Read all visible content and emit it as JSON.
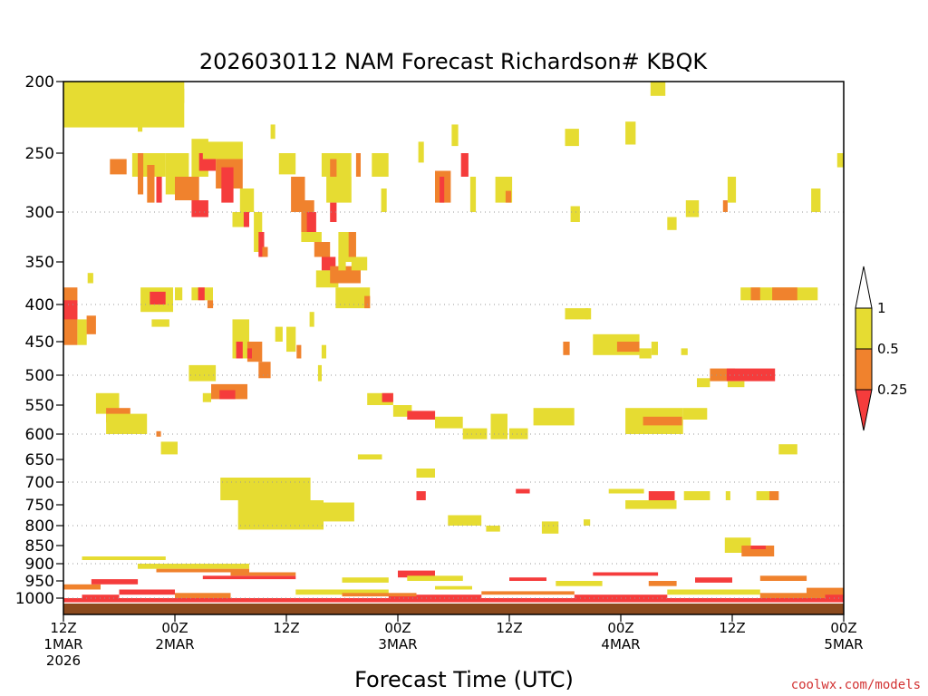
{
  "chart_data": {
    "type": "heatmap",
    "title": "2026030112 NAM Forecast Richardson# KBQK",
    "xlabel": "Forecast Time (UTC)",
    "credit": "coolwx.com/models",
    "y_axis": {
      "range": [
        1025,
        200
      ],
      "ticks": [
        200,
        250,
        300,
        350,
        400,
        450,
        500,
        550,
        600,
        650,
        700,
        750,
        800,
        850,
        900,
        950,
        1000
      ],
      "dotted_grid": [
        300,
        400,
        500,
        600,
        700,
        800,
        900,
        1000
      ]
    },
    "x_axis": {
      "range_hours": [
        0,
        84
      ],
      "ticks": [
        {
          "hour": 0,
          "lines": [
            "12Z",
            "1MAR",
            "2026"
          ]
        },
        {
          "hour": 12,
          "lines": [
            "00Z",
            "2MAR"
          ]
        },
        {
          "hour": 24,
          "lines": [
            "12Z"
          ]
        },
        {
          "hour": 36,
          "lines": [
            "00Z",
            "3MAR"
          ]
        },
        {
          "hour": 48,
          "lines": [
            "12Z"
          ]
        },
        {
          "hour": 60,
          "lines": [
            "00Z",
            "4MAR"
          ]
        },
        {
          "hour": 72,
          "lines": [
            "12Z"
          ]
        },
        {
          "hour": 84,
          "lines": [
            "00Z",
            "5MAR"
          ]
        }
      ]
    },
    "legend": {
      "bins": [
        {
          "label": "1",
          "color": "#ffffff"
        },
        {
          "label": "0.5",
          "color": "#e6dc32"
        },
        {
          "label": "0.25",
          "color": "#f0822d"
        },
        {
          "label": "",
          "color": "#f53c3c"
        }
      ],
      "tick_labels": [
        "1",
        "0.5",
        "0.25"
      ]
    },
    "colors": {
      "y": "#e6dc32",
      "o": "#f0822d",
      "r": "#f53c3c",
      "ground": "#8b4a1e"
    },
    "cells": [
      [
        0,
        13,
        200,
        232,
        "y"
      ],
      [
        0,
        13,
        205,
        215,
        "y"
      ],
      [
        8,
        8.5,
        210,
        235,
        "y"
      ],
      [
        5,
        6.8,
        255,
        268,
        "o"
      ],
      [
        7.4,
        11,
        250,
        270,
        "y"
      ],
      [
        8,
        8.6,
        250,
        285,
        "o"
      ],
      [
        9,
        9.8,
        260,
        292,
        "o"
      ],
      [
        10,
        10.6,
        270,
        292,
        "r"
      ],
      [
        11,
        13.5,
        250,
        285,
        "y"
      ],
      [
        12,
        14.6,
        270,
        290,
        "o"
      ],
      [
        13.8,
        15.6,
        240,
        270,
        "y"
      ],
      [
        14.6,
        16.4,
        250,
        265,
        "r"
      ],
      [
        15,
        19.3,
        242,
        255,
        "y"
      ],
      [
        16.4,
        19.3,
        255,
        280,
        "o"
      ],
      [
        17,
        18.3,
        262,
        292,
        "r"
      ],
      [
        19,
        20.5,
        280,
        300,
        "y"
      ],
      [
        13.8,
        15.6,
        290,
        305,
        "r"
      ],
      [
        18.2,
        20,
        300,
        315,
        "y"
      ],
      [
        19.4,
        20,
        300,
        315,
        "r"
      ],
      [
        20.5,
        21.4,
        300,
        340,
        "y"
      ],
      [
        21,
        21.6,
        320,
        345,
        "r"
      ],
      [
        21.4,
        22,
        335,
        345,
        "o"
      ],
      [
        22.3,
        22.8,
        230,
        240,
        "y"
      ],
      [
        23.2,
        25,
        250,
        268,
        "y"
      ],
      [
        24.5,
        26,
        270,
        300,
        "o"
      ],
      [
        25.6,
        27,
        290,
        320,
        "o"
      ],
      [
        26.2,
        27.2,
        300,
        325,
        "r"
      ],
      [
        25.6,
        27.8,
        320,
        330,
        "y"
      ],
      [
        27,
        28.7,
        330,
        345,
        "o"
      ],
      [
        27.8,
        29.3,
        345,
        360,
        "r"
      ],
      [
        27.2,
        29.6,
        360,
        380,
        "y"
      ],
      [
        28.7,
        32,
        355,
        375,
        "o"
      ],
      [
        29.6,
        31.5,
        320,
        350,
        "y"
      ],
      [
        30.7,
        31.5,
        320,
        345,
        "o"
      ],
      [
        31,
        32.7,
        345,
        360,
        "y"
      ],
      [
        27.8,
        31,
        250,
        270,
        "y"
      ],
      [
        28.7,
        29.4,
        255,
        275,
        "o"
      ],
      [
        28.3,
        31,
        270,
        292,
        "y"
      ],
      [
        28.7,
        29.4,
        292,
        310,
        "r"
      ],
      [
        31.5,
        32,
        250,
        270,
        "o"
      ],
      [
        33.2,
        35,
        250,
        270,
        "y"
      ],
      [
        34.2,
        34.8,
        280,
        300,
        "y"
      ],
      [
        38.2,
        38.8,
        242,
        258,
        "y"
      ],
      [
        40,
        41.7,
        265,
        292,
        "o"
      ],
      [
        40.5,
        41,
        270,
        292,
        "r"
      ],
      [
        41.8,
        42.5,
        230,
        245,
        "y"
      ],
      [
        42.8,
        43.6,
        250,
        270,
        "r"
      ],
      [
        43.8,
        44.4,
        270,
        300,
        "y"
      ],
      [
        46.5,
        48.3,
        270,
        292,
        "y"
      ],
      [
        47.6,
        48.2,
        282,
        292,
        "o"
      ],
      [
        54,
        55.5,
        233,
        245,
        "y"
      ],
      [
        54.6,
        55.6,
        295,
        310,
        "y"
      ],
      [
        60.5,
        61.6,
        228,
        244,
        "y"
      ],
      [
        63.2,
        64.8,
        200,
        210,
        "y"
      ],
      [
        65,
        66,
        305,
        318,
        "y"
      ],
      [
        67,
        68.4,
        290,
        305,
        "y"
      ],
      [
        71,
        71.5,
        290,
        300,
        "o"
      ],
      [
        71.5,
        72.4,
        270,
        292,
        "y"
      ],
      [
        80.5,
        81.5,
        280,
        300,
        "y"
      ],
      [
        83.3,
        84,
        250,
        262,
        "y"
      ],
      [
        0,
        1.5,
        380,
        455,
        "o"
      ],
      [
        0,
        1.5,
        395,
        420,
        "r"
      ],
      [
        1.5,
        2.5,
        420,
        455,
        "y"
      ],
      [
        2.5,
        3.5,
        415,
        440,
        "o"
      ],
      [
        2.6,
        3.2,
        363,
        375,
        "y"
      ],
      [
        8.3,
        11.8,
        380,
        410,
        "y"
      ],
      [
        9.3,
        11,
        385,
        400,
        "r"
      ],
      [
        12,
        12.8,
        380,
        395,
        "y"
      ],
      [
        13.8,
        16.1,
        380,
        395,
        "y"
      ],
      [
        14.5,
        15.2,
        380,
        395,
        "r"
      ],
      [
        15.5,
        16.1,
        395,
        405,
        "o"
      ],
      [
        9.5,
        11.4,
        420,
        430,
        "y"
      ],
      [
        18.2,
        20,
        420,
        475,
        "y"
      ],
      [
        18.6,
        19.3,
        450,
        475,
        "r"
      ],
      [
        19.8,
        21.4,
        450,
        480,
        "o"
      ],
      [
        19.8,
        20.3,
        460,
        475,
        "r"
      ],
      [
        21,
        22.3,
        480,
        505,
        "o"
      ],
      [
        22.8,
        23.6,
        430,
        450,
        "y"
      ],
      [
        24,
        25,
        430,
        465,
        "y"
      ],
      [
        25.1,
        25.6,
        455,
        475,
        "o"
      ],
      [
        26.5,
        27,
        410,
        430,
        "y"
      ],
      [
        27.8,
        28.3,
        455,
        475,
        "y"
      ],
      [
        27.4,
        27.8,
        485,
        510,
        "y"
      ],
      [
        29.3,
        33,
        380,
        405,
        "y"
      ],
      [
        32.4,
        33,
        390,
        405,
        "o"
      ],
      [
        29.6,
        30.4,
        345,
        360,
        "y"
      ],
      [
        13.5,
        16.4,
        485,
        510,
        "y"
      ],
      [
        15.9,
        19.8,
        515,
        540,
        "o"
      ],
      [
        16.8,
        18.5,
        525,
        540,
        "r"
      ],
      [
        15,
        15.9,
        530,
        545,
        "y"
      ],
      [
        3.5,
        6,
        530,
        565,
        "y"
      ],
      [
        4.6,
        7.2,
        555,
        580,
        "o"
      ],
      [
        4.6,
        9,
        565,
        600,
        "y"
      ],
      [
        10,
        10.5,
        595,
        605,
        "o"
      ],
      [
        10.5,
        12.3,
        615,
        640,
        "y"
      ],
      [
        32.7,
        35.5,
        530,
        550,
        "y"
      ],
      [
        34.3,
        35.5,
        530,
        545,
        "r"
      ],
      [
        35.5,
        37.5,
        550,
        570,
        "y"
      ],
      [
        37,
        40,
        560,
        575,
        "r"
      ],
      [
        40,
        43,
        570,
        590,
        "y"
      ],
      [
        43,
        45.6,
        590,
        610,
        "y"
      ],
      [
        46,
        47.8,
        565,
        610,
        "y"
      ],
      [
        48,
        50,
        590,
        610,
        "y"
      ],
      [
        50.6,
        55,
        555,
        585,
        "y"
      ],
      [
        48.7,
        50.2,
        715,
        725,
        "r"
      ],
      [
        54,
        56.5,
        405,
        420,
        "y"
      ],
      [
        53.8,
        54.5,
        450,
        470,
        "o"
      ],
      [
        56.2,
        56.8,
        405,
        420,
        "y"
      ],
      [
        57,
        62,
        440,
        470,
        "y"
      ],
      [
        59.6,
        62,
        450,
        465,
        "o"
      ],
      [
        62,
        63.3,
        460,
        475,
        "y"
      ],
      [
        63.3,
        64,
        450,
        470,
        "y"
      ],
      [
        66.5,
        67.2,
        460,
        470,
        "y"
      ],
      [
        60.5,
        66.7,
        555,
        600,
        "y"
      ],
      [
        62.4,
        66.6,
        570,
        585,
        "o"
      ],
      [
        66.7,
        69.3,
        555,
        575,
        "y"
      ],
      [
        68.2,
        69.6,
        505,
        520,
        "y"
      ],
      [
        69.6,
        72.3,
        490,
        510,
        "o"
      ],
      [
        71.4,
        76.6,
        490,
        510,
        "r"
      ],
      [
        71.5,
        73.3,
        510,
        520,
        "y"
      ],
      [
        72.9,
        81.2,
        380,
        395,
        "y"
      ],
      [
        76.3,
        79,
        380,
        395,
        "o"
      ],
      [
        74,
        75,
        380,
        395,
        "o"
      ],
      [
        77,
        79,
        620,
        640,
        "y"
      ],
      [
        58.7,
        62.5,
        715,
        725,
        "y"
      ],
      [
        63,
        65.8,
        720,
        740,
        "r"
      ],
      [
        60.5,
        66,
        740,
        760,
        "y"
      ],
      [
        66.8,
        69.6,
        720,
        740,
        "y"
      ],
      [
        71.3,
        71.8,
        720,
        740,
        "y"
      ],
      [
        74.6,
        76,
        720,
        740,
        "y"
      ],
      [
        76,
        77,
        720,
        740,
        "o"
      ],
      [
        16.9,
        26.6,
        690,
        740,
        "y"
      ],
      [
        18.8,
        28,
        740,
        810,
        "y"
      ],
      [
        27,
        31.3,
        745,
        790,
        "y"
      ],
      [
        31.7,
        34.3,
        640,
        650,
        "y"
      ],
      [
        38,
        40,
        670,
        690,
        "y"
      ],
      [
        38,
        39,
        720,
        740,
        "r"
      ],
      [
        41.4,
        45,
        775,
        800,
        "y"
      ],
      [
        45.5,
        47,
        800,
        815,
        "y"
      ],
      [
        51.5,
        53.3,
        790,
        820,
        "y"
      ],
      [
        56,
        56.7,
        785,
        800,
        "y"
      ],
      [
        71.2,
        74,
        830,
        870,
        "y"
      ],
      [
        73,
        76.5,
        850,
        880,
        "o"
      ],
      [
        74,
        75.6,
        850,
        860,
        "r"
      ],
      [
        2,
        11,
        880,
        890,
        "y"
      ],
      [
        8,
        20,
        900,
        915,
        "y"
      ],
      [
        10,
        20,
        915,
        925,
        "o"
      ],
      [
        15,
        25,
        935,
        945,
        "r"
      ],
      [
        18,
        25,
        925,
        935,
        "o"
      ],
      [
        30,
        35,
        940,
        955,
        "y"
      ],
      [
        36,
        40,
        920,
        940,
        "r"
      ],
      [
        37,
        43,
        935,
        950,
        "y"
      ],
      [
        48,
        52,
        940,
        950,
        "r"
      ],
      [
        53,
        58,
        950,
        965,
        "y"
      ],
      [
        57,
        64,
        925,
        935,
        "r"
      ],
      [
        63,
        66,
        950,
        965,
        "o"
      ],
      [
        68,
        72,
        940,
        955,
        "r"
      ],
      [
        75,
        80,
        935,
        950,
        "o"
      ],
      [
        2,
        6,
        990,
        1000,
        "r"
      ],
      [
        6,
        12,
        975,
        990,
        "r"
      ],
      [
        12,
        18,
        985,
        1000,
        "o"
      ],
      [
        25,
        35,
        975,
        990,
        "y"
      ],
      [
        35,
        45,
        990,
        1000,
        "r"
      ],
      [
        45,
        55,
        980,
        990,
        "o"
      ],
      [
        55,
        65,
        990,
        1000,
        "r"
      ],
      [
        65,
        75,
        975,
        990,
        "y"
      ],
      [
        75,
        84,
        985,
        1000,
        "o"
      ],
      [
        0,
        84,
        1000,
        1012,
        "r"
      ],
      [
        0,
        4,
        960,
        975,
        "o"
      ],
      [
        3,
        8,
        945,
        960,
        "r"
      ],
      [
        80,
        84,
        970,
        990,
        "o"
      ],
      [
        82,
        84,
        990,
        1000,
        "r"
      ],
      [
        30,
        38,
        985,
        995,
        "o"
      ],
      [
        40,
        44,
        965,
        975,
        "y"
      ]
    ]
  }
}
